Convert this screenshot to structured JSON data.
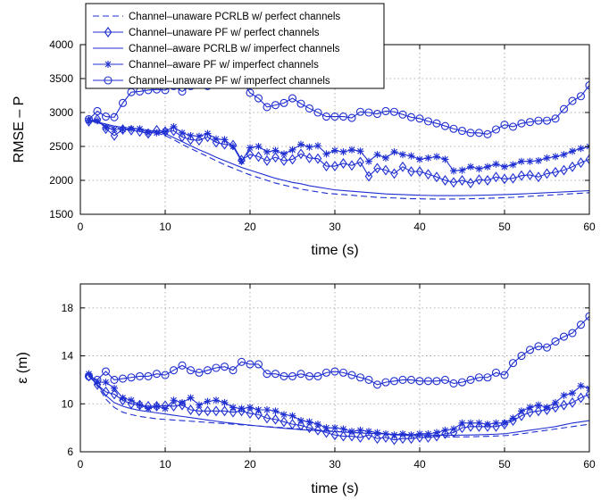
{
  "colors": {
    "series": "#1f2fd1",
    "grid": "#9a9a9a",
    "axes": "#000000",
    "background": "#ffffff"
  },
  "chart_data": [
    {
      "type": "line",
      "title": "",
      "xlabel": "time (s)",
      "ylabel": "RMSE – P",
      "xlim": [
        0,
        60
      ],
      "ylim": [
        1500,
        4000
      ],
      "xticks": [
        0,
        10,
        20,
        30,
        40,
        50,
        60
      ],
      "yticks": [
        1500,
        2000,
        2500,
        3000,
        3500,
        4000
      ],
      "grid": true,
      "legend_position": "top-left",
      "x": [
        1,
        2,
        3,
        4,
        5,
        6,
        7,
        8,
        9,
        10,
        11,
        12,
        13,
        14,
        15,
        16,
        17,
        18,
        19,
        20,
        21,
        22,
        23,
        24,
        25,
        26,
        27,
        28,
        29,
        30,
        31,
        32,
        33,
        34,
        35,
        36,
        37,
        38,
        39,
        40,
        41,
        42,
        43,
        44,
        45,
        46,
        47,
        48,
        49,
        50,
        51,
        52,
        53,
        54,
        55,
        56,
        57,
        58,
        59,
        60
      ],
      "series": [
        {
          "name": "Channel–unaware PCRLB w/ perfect channels",
          "style": "dashed",
          "marker": "none",
          "values": [
            2880,
            2850,
            2810,
            2780,
            2760,
            2750,
            2740,
            2720,
            2700,
            2660,
            2600,
            2530,
            2470,
            2410,
            2350,
            2290,
            2230,
            2180,
            2130,
            2080,
            2040,
            2000,
            1960,
            1930,
            1900,
            1870,
            1850,
            1830,
            1810,
            1800,
            1790,
            1780,
            1770,
            1760,
            1750,
            1745,
            1740,
            1735,
            1730,
            1728,
            1726,
            1725,
            1724,
            1725,
            1727,
            1729,
            1732,
            1735,
            1740,
            1745,
            1750,
            1758,
            1765,
            1772,
            1780,
            1788,
            1795,
            1803,
            1810,
            1818
          ]
        },
        {
          "name": "Channel–unaware PF w/ perfect channels",
          "style": "solid",
          "marker": "diamond",
          "values": [
            2870,
            2900,
            2760,
            2660,
            2750,
            2740,
            2720,
            2690,
            2740,
            2720,
            2730,
            2640,
            2600,
            2590,
            2640,
            2560,
            2530,
            2520,
            2300,
            2380,
            2350,
            2290,
            2340,
            2290,
            2310,
            2390,
            2330,
            2320,
            2210,
            2210,
            2250,
            2220,
            2270,
            2060,
            2180,
            2150,
            2100,
            2200,
            2130,
            2130,
            2090,
            2050,
            2000,
            1970,
            2000,
            1960,
            2010,
            2000,
            2050,
            2020,
            2030,
            2070,
            2080,
            2050,
            2100,
            2120,
            2150,
            2200,
            2260,
            2310
          ]
        },
        {
          "name": "Channel–aware PCRLB w/ imperfect channels",
          "style": "solid",
          "marker": "none",
          "values": [
            2890,
            2860,
            2830,
            2800,
            2780,
            2770,
            2760,
            2740,
            2720,
            2690,
            2630,
            2570,
            2510,
            2450,
            2400,
            2340,
            2290,
            2240,
            2190,
            2150,
            2110,
            2070,
            2030,
            2000,
            1970,
            1950,
            1920,
            1900,
            1880,
            1860,
            1850,
            1840,
            1830,
            1820,
            1810,
            1800,
            1795,
            1790,
            1785,
            1780,
            1778,
            1776,
            1775,
            1775,
            1776,
            1778,
            1780,
            1783,
            1787,
            1790,
            1795,
            1800,
            1806,
            1812,
            1818,
            1824,
            1830,
            1836,
            1842,
            1848
          ]
        },
        {
          "name": "Channel–aware PF w/ imperfect channels",
          "style": "solid",
          "marker": "star",
          "values": [
            2880,
            2880,
            2780,
            2750,
            2750,
            2760,
            2760,
            2700,
            2700,
            2720,
            2790,
            2700,
            2660,
            2650,
            2690,
            2610,
            2600,
            2500,
            2280,
            2480,
            2500,
            2420,
            2440,
            2390,
            2450,
            2530,
            2490,
            2510,
            2390,
            2440,
            2420,
            2450,
            2430,
            2280,
            2380,
            2330,
            2420,
            2380,
            2360,
            2310,
            2330,
            2350,
            2310,
            2140,
            2150,
            2200,
            2170,
            2200,
            2240,
            2200,
            2230,
            2280,
            2280,
            2290,
            2330,
            2350,
            2380,
            2430,
            2470,
            2500
          ]
        },
        {
          "name": "Channel–unaware PF w/ imperfect channels",
          "style": "solid",
          "marker": "circle",
          "values": [
            2900,
            3020,
            2940,
            2930,
            3140,
            3300,
            3310,
            3330,
            3340,
            3330,
            3390,
            3310,
            3390,
            3410,
            3390,
            3480,
            3660,
            3710,
            3470,
            3290,
            3210,
            3080,
            3110,
            3140,
            3210,
            3130,
            3060,
            3000,
            2940,
            2940,
            2940,
            2920,
            3010,
            3000,
            2980,
            3020,
            3010,
            2970,
            2930,
            2910,
            2870,
            2840,
            2800,
            2760,
            2730,
            2700,
            2700,
            2680,
            2750,
            2820,
            2790,
            2840,
            2860,
            2880,
            2880,
            2910,
            3050,
            3170,
            3240,
            3400
          ]
        }
      ]
    },
    {
      "type": "line",
      "title": "",
      "xlabel": "time (s)",
      "ylabel": "ε (m)",
      "xlim": [
        0,
        60
      ],
      "ylim": [
        6,
        20
      ],
      "xticks": [
        0,
        10,
        20,
        30,
        40,
        50,
        60
      ],
      "yticks": [
        6,
        10,
        14,
        18
      ],
      "grid": true,
      "x": [
        1,
        2,
        3,
        4,
        5,
        6,
        7,
        8,
        9,
        10,
        11,
        12,
        13,
        14,
        15,
        16,
        17,
        18,
        19,
        20,
        21,
        22,
        23,
        24,
        25,
        26,
        27,
        28,
        29,
        30,
        31,
        32,
        33,
        34,
        35,
        36,
        37,
        38,
        39,
        40,
        41,
        42,
        43,
        44,
        45,
        46,
        47,
        48,
        49,
        50,
        51,
        52,
        53,
        54,
        55,
        56,
        57,
        58,
        59,
        60
      ],
      "series": [
        {
          "name": "Channel–unaware PCRLB w/ perfect channels",
          "style": "dashed",
          "marker": "none",
          "values": [
            12.4,
            11.5,
            10.4,
            9.7,
            9.3,
            9.1,
            8.95,
            8.85,
            8.75,
            8.7,
            8.65,
            8.6,
            8.55,
            8.5,
            8.45,
            8.4,
            8.35,
            8.3,
            8.25,
            8.2,
            8.15,
            8.1,
            8.05,
            8.0,
            7.95,
            7.9,
            7.85,
            7.8,
            7.75,
            7.7,
            7.66,
            7.62,
            7.58,
            7.54,
            7.5,
            7.46,
            7.42,
            7.38,
            7.34,
            7.3,
            7.28,
            7.26,
            7.25,
            7.24,
            7.24,
            7.25,
            7.27,
            7.29,
            7.32,
            7.35,
            7.4,
            7.5,
            7.6,
            7.7,
            7.8,
            7.9,
            8.0,
            8.1,
            8.2,
            8.3
          ]
        },
        {
          "name": "Channel–unaware PF w/ perfect channels",
          "style": "solid",
          "marker": "diamond",
          "values": [
            12.3,
            11.6,
            11.0,
            10.8,
            10.3,
            10.0,
            9.9,
            9.8,
            9.8,
            9.85,
            9.8,
            9.9,
            9.5,
            9.4,
            9.4,
            9.4,
            9.4,
            9.3,
            9.4,
            9.2,
            9.1,
            8.8,
            8.7,
            8.5,
            8.3,
            8.2,
            8.0,
            7.8,
            7.6,
            7.4,
            7.3,
            7.3,
            7.2,
            7.4,
            7.1,
            7.2,
            7.0,
            7.1,
            7.1,
            7.2,
            7.2,
            7.3,
            7.5,
            7.6,
            8.0,
            8.1,
            8.1,
            8.1,
            8.1,
            8.3,
            8.6,
            9.0,
            9.3,
            9.4,
            9.5,
            9.7,
            9.9,
            10.1,
            10.5,
            10.8
          ]
        },
        {
          "name": "Channel–aware PCRLB w/ imperfect channels",
          "style": "solid",
          "marker": "none",
          "values": [
            12.4,
            11.6,
            10.7,
            10.1,
            9.8,
            9.6,
            9.45,
            9.35,
            9.25,
            9.15,
            9.05,
            8.95,
            8.85,
            8.75,
            8.65,
            8.55,
            8.45,
            8.38,
            8.3,
            8.22,
            8.15,
            8.08,
            8.02,
            7.96,
            7.9,
            7.85,
            7.8,
            7.76,
            7.72,
            7.68,
            7.64,
            7.6,
            7.57,
            7.54,
            7.51,
            7.48,
            7.46,
            7.44,
            7.42,
            7.4,
            7.39,
            7.38,
            7.38,
            7.38,
            7.39,
            7.4,
            7.42,
            7.44,
            7.47,
            7.5,
            7.6,
            7.7,
            7.8,
            7.9,
            8.0,
            8.1,
            8.25,
            8.4,
            8.5,
            8.6
          ]
        },
        {
          "name": "Channel–aware PF w/ imperfect channels",
          "style": "solid",
          "marker": "star",
          "values": [
            12.5,
            11.8,
            11.8,
            11.3,
            10.5,
            10.3,
            9.9,
            9.6,
            9.8,
            9.6,
            10.3,
            10.1,
            10.5,
            9.9,
            10.2,
            10.3,
            10.1,
            9.7,
            9.6,
            9.7,
            9.5,
            9.5,
            9.4,
            9.1,
            9.0,
            8.6,
            8.5,
            8.3,
            8.0,
            8.0,
            7.9,
            7.7,
            7.8,
            7.7,
            7.6,
            7.5,
            7.4,
            7.5,
            7.4,
            7.5,
            7.5,
            7.6,
            7.8,
            7.9,
            8.4,
            8.4,
            8.4,
            8.3,
            8.4,
            8.4,
            8.8,
            9.4,
            9.7,
            9.9,
            9.7,
            10.1,
            10.7,
            10.9,
            11.5,
            11.3
          ]
        },
        {
          "name": "Channel–unaware PF w/ imperfect channels",
          "style": "solid",
          "marker": "circle",
          "values": [
            12.3,
            12.0,
            12.7,
            12.0,
            12.1,
            12.2,
            12.3,
            12.3,
            12.5,
            12.4,
            12.8,
            13.2,
            12.8,
            12.6,
            12.8,
            13.0,
            13.1,
            12.8,
            13.5,
            13.3,
            13.3,
            12.5,
            12.5,
            12.3,
            12.3,
            12.5,
            12.3,
            12.3,
            12.6,
            12.7,
            12.6,
            12.4,
            12.2,
            12.0,
            11.6,
            11.8,
            11.9,
            12.0,
            12.0,
            11.9,
            11.9,
            11.9,
            12.0,
            11.7,
            11.8,
            12.0,
            12.2,
            12.2,
            12.6,
            12.4,
            13.4,
            14.0,
            14.5,
            14.8,
            14.7,
            15.2,
            15.6,
            15.9,
            16.6,
            17.3
          ]
        }
      ]
    }
  ]
}
